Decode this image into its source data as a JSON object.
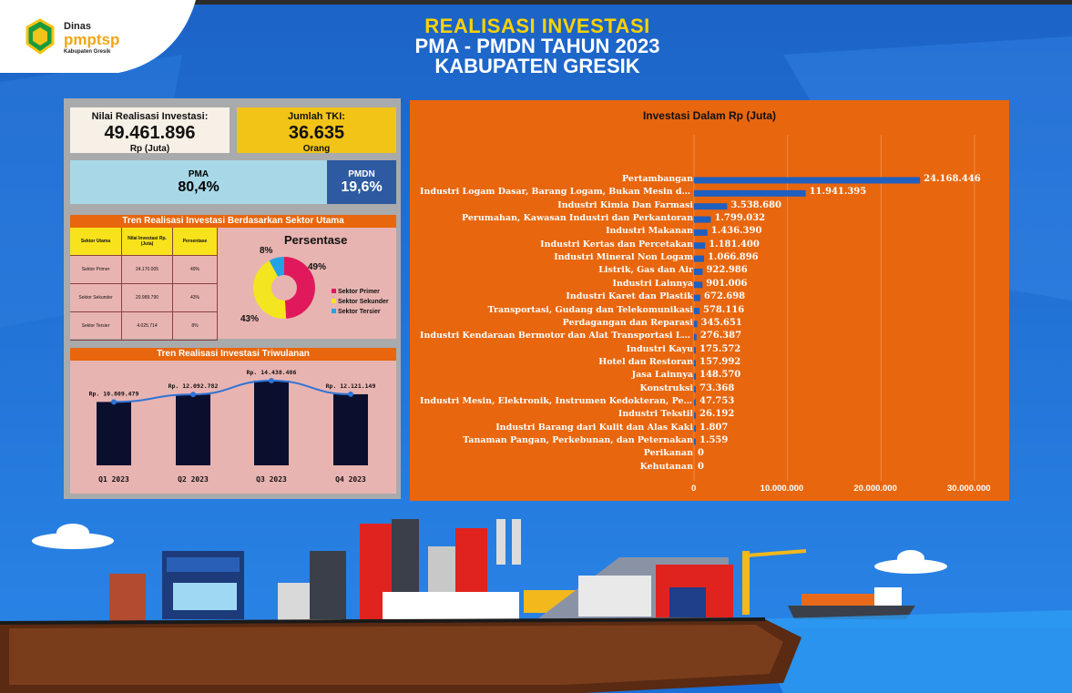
{
  "header": {
    "line1": "REALISASI INVESTASI",
    "line2": "PMA - PMDN TAHUN 2023",
    "line3": "KABUPATEN GRESIK"
  },
  "logo": {
    "dinas": "Dinas",
    "brand": "pmptsp",
    "region": "Kabupaten Gresik"
  },
  "kpi": {
    "investasi_label": "Nilai Realisasi Investasi:",
    "investasi_value": "49.461.896",
    "investasi_unit": "Rp (Juta)",
    "tki_label": "Jumlah TKI:",
    "tki_value": "36.635",
    "tki_unit": "Orang"
  },
  "share": {
    "pma_label": "PMA",
    "pma_value": "80,4%",
    "pmdn_label": "PMDN",
    "pmdn_value": "19,6%"
  },
  "sector": {
    "heading": "Tren Realisasi Investasi Berdasarkan Sektor Utama",
    "col1": "Sektor Utama",
    "col2": "Nilai Investasi Rp. (Juta)",
    "col3": "Persentase",
    "rows": [
      {
        "name": "Sektor Primer",
        "value": "24.170.005",
        "pct": "49%"
      },
      {
        "name": "Sektor Sekunder",
        "value": "20.989.790",
        "pct": "43%"
      },
      {
        "name": "Sektor Tersier",
        "value": "4.025.714",
        "pct": "8%"
      }
    ],
    "pie_title": "Persentase",
    "legend": [
      "Sektor Primer",
      "Sektor Sekunder",
      "Sektor Tersier"
    ],
    "pie_labels": [
      "49%",
      "43%",
      "8%"
    ]
  },
  "quarterly": {
    "heading": "Tren Realisasi Investasi Triwulanan",
    "labels": [
      "Q1 2023",
      "Q2 2023",
      "Q3 2023",
      "Q4 2023"
    ],
    "value_labels": [
      "Rp. 10.809.479",
      "Rp. 12.092.782",
      "Rp. 14.438.486",
      "Rp. 12.121.149"
    ]
  },
  "colors": {
    "orange": "#e8660d",
    "blue_bar": "#1f5fbf",
    "primer": "#e0195c",
    "sekunder": "#f3e51f",
    "tersier": "#22a3e6",
    "navy": "#0b0f2e"
  },
  "chart_data": [
    {
      "type": "bar",
      "orientation": "horizontal",
      "title": "Investasi Dalam Rp (Juta)",
      "categories": [
        "Pertambangan",
        "Industri Logam Dasar, Barang Logam, Bukan Mesin dan Peralatannya",
        "Industri Kimia Dan Farmasi",
        "Perumahan, Kawasan Industri dan Perkantoran",
        "Industri Makanan",
        "Industri Kertas dan Percetakan",
        "Industri Mineral Non Logam",
        "Listrik, Gas dan Air",
        "Industri Lainnya",
        "Industri Karet dan Plastik",
        "Transportasi, Gudang dan Telekomunikasi",
        "Perdagangan dan Reparasi",
        "Industri Kendaraan Bermotor dan Alat Transportasi Lain",
        "Industri Kayu",
        "Hotel dan Restoran",
        "Jasa Lainnya",
        "Konstruksi",
        "Industri Mesin, Elektronik, Instrumen Kedokteran, Peralatan Listrik, Presisi, Optik dan Jam",
        "Industri Tekstil",
        "Industri Barang dari Kulit dan Alas Kaki",
        "Tanaman Pangan, Perkebunan, dan Peternakan",
        "Perikanan",
        "Kehutanan"
      ],
      "values": [
        24168446,
        11941395,
        3538680,
        1799032,
        1436390,
        1181400,
        1066896,
        922986,
        901006,
        672698,
        578116,
        345651,
        276387,
        175572,
        157992,
        148570,
        73368,
        47753,
        26192,
        1807,
        1559,
        0,
        0
      ],
      "value_labels": [
        "24.168.446",
        "11.941.395",
        "3.538.680",
        "1.799.032",
        "1.436.390",
        "1.181.400",
        "1.066.896",
        "922.986",
        "901.006",
        "672.698",
        "578.116",
        "345.651",
        "276.387",
        "175.572",
        "157.992",
        "148.570",
        "73.368",
        "47.753",
        "26.192",
        "1.807",
        "1.559",
        "0",
        "0"
      ],
      "xlim": [
        0,
        30000000
      ],
      "xticks": [
        0,
        10000000,
        20000000,
        30000000
      ],
      "xtick_labels": [
        "0",
        "10.000.000",
        "20.000.000",
        "30.000.000"
      ],
      "grid": true
    },
    {
      "type": "pie",
      "title": "Persentase",
      "categories": [
        "Sektor Primer",
        "Sektor Sekunder",
        "Sektor Tersier"
      ],
      "values": [
        49,
        43,
        8
      ]
    },
    {
      "type": "bar",
      "title": "Tren Realisasi Investasi Triwulanan",
      "categories": [
        "Q1 2023",
        "Q2 2023",
        "Q3 2023",
        "Q4 2023"
      ],
      "values": [
        10809479,
        12092782,
        14438486,
        12121149
      ],
      "overlay": "line"
    }
  ]
}
